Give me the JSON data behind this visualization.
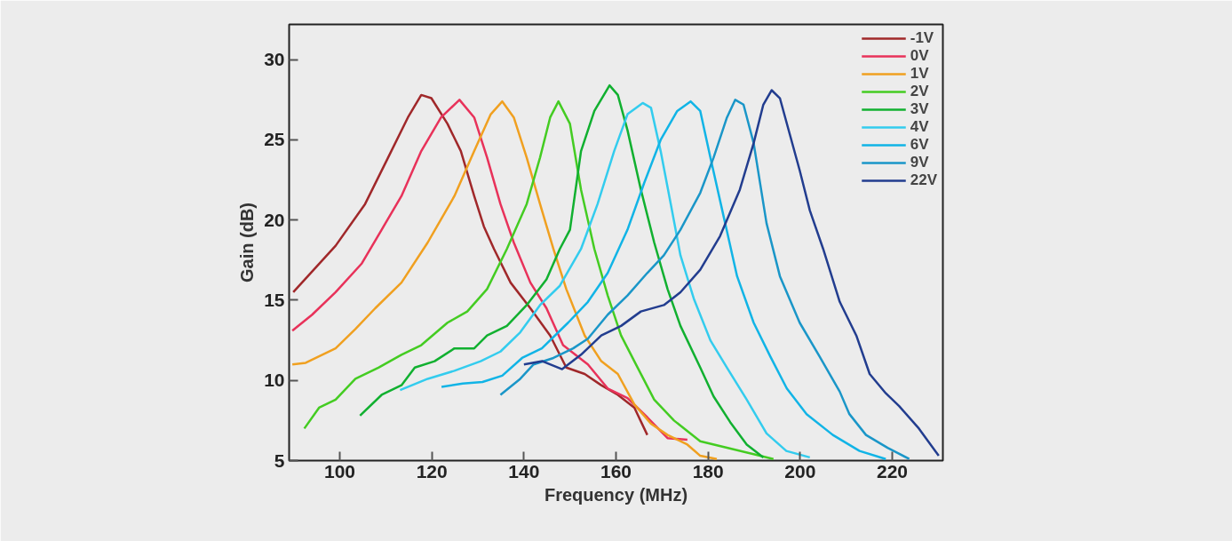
{
  "chart_data": {
    "type": "line",
    "xlabel": "Frequency (MHz)",
    "ylabel": "Gain (dB)",
    "xlim": [
      89,
      231
    ],
    "ylim": [
      5,
      32.2
    ],
    "xticks": [
      100,
      120,
      140,
      160,
      180,
      200,
      220
    ],
    "yticks": [
      5,
      10,
      15,
      20,
      25,
      30
    ],
    "grid": false,
    "legend": "top right",
    "marker": "none",
    "line_style": "solid",
    "series": [
      {
        "name": "-1V",
        "color": "#a0282a",
        "x": [
          89.9,
          99.1,
          105.5,
          110.5,
          114.8,
          117.7,
          119.9,
          123.4,
          126.3,
          129.2,
          131.3,
          133.5,
          137.1,
          141.4,
          145.7,
          149.2,
          153.2,
          156.8,
          160.4,
          164,
          166.8
        ],
        "values": [
          15.5,
          18.4,
          21.0,
          23.9,
          26.4,
          27.8,
          27.6,
          26.0,
          24.3,
          21.5,
          19.6,
          18.2,
          16.1,
          14.5,
          12.8,
          10.8,
          10.4,
          9.7,
          9.1,
          8.3,
          6.6
        ]
      },
      {
        "name": "0V",
        "color": "#e8325a",
        "x": [
          89.7,
          94,
          99.1,
          104.8,
          109.1,
          113.4,
          117.7,
          122,
          126,
          129.2,
          132,
          134.9,
          137.8,
          141.4,
          144.9,
          148.5,
          153.9,
          158.2,
          162.5,
          166.8,
          171.2,
          175.5
        ],
        "values": [
          13.1,
          14.1,
          15.5,
          17.3,
          19.4,
          21.5,
          24.3,
          26.4,
          27.5,
          26.4,
          23.9,
          21.0,
          18.6,
          16.1,
          14.5,
          12.2,
          11.0,
          9.5,
          8.9,
          7.7,
          6.4,
          6.3
        ]
      },
      {
        "name": "1V",
        "color": "#f0a020",
        "x": [
          89.7,
          92.6,
          99.1,
          103.4,
          107.7,
          113.4,
          119.1,
          124.9,
          129.2,
          132.8,
          135.3,
          137.8,
          140.6,
          143.5,
          146.4,
          149.2,
          153.2,
          156.8,
          160.4,
          164,
          167.6,
          171.2,
          175.5,
          178.3,
          181.9
        ],
        "values": [
          11.0,
          11.1,
          12.0,
          13.2,
          14.5,
          16.1,
          18.6,
          21.5,
          24.3,
          26.6,
          27.4,
          26.4,
          23.9,
          21.0,
          18.2,
          15.7,
          12.8,
          11.2,
          10.4,
          8.5,
          7.3,
          6.6,
          6.0,
          5.3,
          5.1
        ]
      },
      {
        "name": "2V",
        "color": "#44cc22",
        "x": [
          92.3,
          95.5,
          99.1,
          103.4,
          108.4,
          113.4,
          117.7,
          123.4,
          127.7,
          132,
          136.3,
          140.6,
          143.5,
          145.7,
          147.5,
          150,
          152.4,
          155.3,
          158.2,
          161.1,
          164.7,
          168.3,
          172.6,
          178.3,
          184.1,
          189.9,
          194.2
        ],
        "values": [
          7.0,
          8.3,
          8.8,
          10.1,
          10.8,
          11.6,
          12.2,
          13.6,
          14.3,
          15.7,
          18.2,
          21.0,
          23.9,
          26.4,
          27.4,
          26.0,
          21.9,
          18.2,
          15.3,
          12.8,
          10.8,
          8.8,
          7.5,
          6.2,
          5.8,
          5.4,
          5.1
        ]
      },
      {
        "name": "3V",
        "color": "#11b030",
        "x": [
          104.4,
          109.1,
          113.4,
          116.3,
          120.6,
          124.9,
          129.2,
          132,
          136.3,
          140.6,
          144.9,
          147.8,
          150,
          152.4,
          155.3,
          158.6,
          160.4,
          162.5,
          165.4,
          168.3,
          171.2,
          174,
          178.3,
          181.2,
          184.8,
          188.4,
          192
        ],
        "values": [
          7.8,
          9.1,
          9.7,
          10.8,
          11.2,
          12.0,
          12.0,
          12.8,
          13.4,
          14.7,
          16.3,
          18.2,
          19.4,
          24.3,
          26.8,
          28.4,
          27.8,
          25.6,
          21.9,
          18.6,
          15.7,
          13.4,
          10.8,
          9.0,
          7.4,
          6.0,
          5.2
        ]
      },
      {
        "name": "4V",
        "color": "#33ccee",
        "x": [
          113.1,
          119.1,
          124.9,
          130.6,
          134.9,
          139.2,
          143.5,
          147.8,
          152.4,
          156,
          159.6,
          162.5,
          165.8,
          167.6,
          169.7,
          171.9,
          174,
          176.9,
          180.5,
          184.1,
          188.4,
          192.7,
          197,
          202.1
        ],
        "values": [
          9.4,
          10.1,
          10.6,
          11.2,
          11.8,
          13.0,
          14.7,
          15.9,
          18.2,
          21.0,
          24.3,
          26.6,
          27.3,
          27.0,
          24.3,
          21.0,
          17.8,
          15.1,
          12.5,
          10.8,
          8.8,
          6.7,
          5.6,
          5.2
        ]
      },
      {
        "name": "6V",
        "color": "#11b4e6",
        "x": [
          122.1,
          126.7,
          131,
          135.3,
          139.6,
          143.9,
          149.6,
          153.9,
          158.2,
          162.5,
          166.1,
          169.7,
          173.3,
          176.2,
          178.3,
          180.5,
          183.4,
          186.3,
          189.9,
          193.5,
          197.1,
          201.4,
          207.1,
          212.9,
          218.6
        ],
        "values": [
          9.6,
          9.8,
          9.9,
          10.3,
          11.4,
          12.0,
          13.6,
          14.9,
          16.7,
          19.4,
          22.3,
          25.0,
          26.8,
          27.4,
          26.8,
          23.9,
          20.2,
          16.5,
          13.6,
          11.5,
          9.5,
          7.9,
          6.6,
          5.6,
          5.1
        ]
      },
      {
        "name": "9V",
        "color": "#1a96c8",
        "x": [
          134.9,
          139.2,
          142.1,
          146.4,
          150.7,
          153.9,
          158.2,
          162.5,
          166.8,
          170.4,
          174,
          178.3,
          181.2,
          184.1,
          185.9,
          187.7,
          189.9,
          192.7,
          195.6,
          199.9,
          204.2,
          208.6,
          210.7,
          214.3,
          219,
          223.7
        ],
        "values": [
          9.1,
          10.1,
          11.0,
          11.4,
          12.0,
          12.6,
          14.1,
          15.3,
          16.7,
          17.8,
          19.4,
          21.7,
          23.9,
          26.4,
          27.5,
          27.2,
          24.8,
          19.8,
          16.5,
          13.6,
          11.5,
          9.3,
          7.9,
          6.6,
          5.8,
          5.1
        ]
      },
      {
        "name": "22V",
        "color": "#223d8f",
        "x": [
          140,
          144,
          148.3,
          152.4,
          156.8,
          161.1,
          165.4,
          170.4,
          174,
          178.3,
          182.6,
          186.9,
          189.9,
          192,
          193.8,
          195.6,
          197.7,
          199.9,
          202.1,
          205,
          208.6,
          212.2,
          215.1,
          218.6,
          221.5,
          225.8,
          230.1
        ],
        "values": [
          11.0,
          11.2,
          10.7,
          11.6,
          12.8,
          13.4,
          14.3,
          14.7,
          15.5,
          16.9,
          19.0,
          21.9,
          24.8,
          27.2,
          28.1,
          27.6,
          25.4,
          23.1,
          20.6,
          18.2,
          14.9,
          12.8,
          10.4,
          9.2,
          8.4,
          7.0,
          5.3
        ]
      }
    ]
  }
}
